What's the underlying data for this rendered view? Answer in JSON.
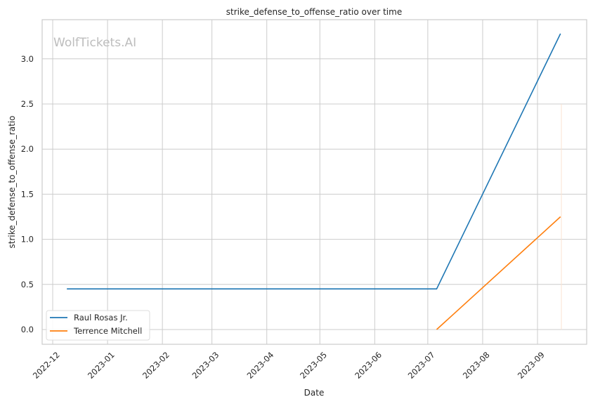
{
  "chart_data": {
    "type": "line",
    "title": "strike_defense_to_offense_ratio over time",
    "xlabel": "Date",
    "ylabel": "strike_defense_to_offense_ratio",
    "watermark": "WolfTickets.AI",
    "x_ticks": [
      "2022-12",
      "2023-01",
      "2023-02",
      "2023-03",
      "2023-04",
      "2023-05",
      "2023-06",
      "2023-07",
      "2023-08",
      "2023-09"
    ],
    "y_ticks": [
      "0.0",
      "0.5",
      "1.0",
      "1.5",
      "2.0",
      "2.5",
      "3.0"
    ],
    "ylim": [
      -0.16,
      3.43
    ],
    "xlim": [
      "2022-11-25",
      "2023-09-28"
    ],
    "grid": true,
    "legend_placement": "lower-left",
    "series": [
      {
        "name": "Raul Rosas Jr.",
        "color": "#1f77b4",
        "points": [
          {
            "x": "2022-12-09",
            "y": 0.45
          },
          {
            "x": "2023-07-06",
            "y": 0.45
          },
          {
            "x": "2023-09-14",
            "y": 3.28
          }
        ]
      },
      {
        "name": "Terrence Mitchell",
        "color": "#ff7f0e",
        "points": [
          {
            "x": "2023-07-06",
            "y": 0.0
          },
          {
            "x": "2023-09-14",
            "y": 1.25
          }
        ]
      }
    ]
  }
}
